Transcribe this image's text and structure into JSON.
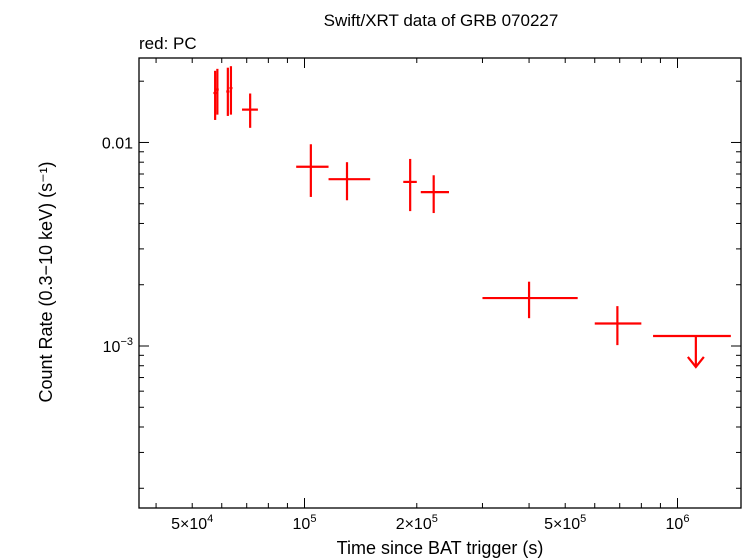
{
  "chart_data": {
    "type": "scatter",
    "title": "Swift/XRT data of GRB 070227",
    "annotation": "red: PC",
    "xlabel": "Time since BAT trigger (s)",
    "ylabel": "Count Rate (0.3−10 keV) (s⁻¹)",
    "xscale": "log",
    "yscale": "log",
    "xlim": [
      36000,
      1480000
    ],
    "ylim": [
      0.00016,
      0.026
    ],
    "x_ticks": [
      {
        "value": 50000,
        "mant": "5×10",
        "exp": "4"
      },
      {
        "value": 100000,
        "mant": "10",
        "exp": "5"
      },
      {
        "value": 200000,
        "mant": "2×10",
        "exp": "5"
      },
      {
        "value": 500000,
        "mant": "5×10",
        "exp": "5"
      },
      {
        "value": 1000000,
        "mant": "10",
        "exp": "6"
      }
    ],
    "y_ticks": [
      {
        "value": 0.01,
        "mant": "0.01",
        "exp": ""
      },
      {
        "value": 0.001,
        "mant": "10",
        "exp": "−3"
      }
    ],
    "color": "#ff0000",
    "series": [
      {
        "points": [
          {
            "x": 57600,
            "xerr": [
              600,
              600
            ],
            "y": 0.0175,
            "yerr": [
              0.0046,
              0.005
            ]
          },
          {
            "x": 58400,
            "xerr": [
              500,
              500
            ],
            "y": 0.0182,
            "yerr": [
              0.0045,
              0.0048
            ]
          },
          {
            "x": 62300,
            "xerr": [
              600,
              600
            ],
            "y": 0.0178,
            "yerr": [
              0.0043,
              0.0055
            ]
          },
          {
            "x": 63500,
            "xerr": [
              600,
              600
            ],
            "y": 0.0185,
            "yerr": [
              0.0048,
              0.0052
            ]
          },
          {
            "x": 71500,
            "xerr": [
              3500,
              3500
            ],
            "y": 0.0145,
            "yerr": [
              0.0027,
              0.0029
            ]
          },
          {
            "x": 104000,
            "xerr": [
              9000,
              12000
            ],
            "y": 0.0076,
            "yerr": [
              0.0022,
              0.0022
            ]
          },
          {
            "x": 130000,
            "xerr": [
              14000,
              20000
            ],
            "y": 0.0066,
            "yerr": [
              0.0014,
              0.0014
            ]
          },
          {
            "x": 192000,
            "xerr": [
              8000,
              8000
            ],
            "y": 0.0064,
            "yerr": [
              0.0018,
              0.0019
            ]
          },
          {
            "x": 222000,
            "xerr": [
              17000,
              22000
            ],
            "y": 0.0057,
            "yerr": [
              0.0012,
              0.0012
            ]
          },
          {
            "x": 400000,
            "xerr": [
              100000,
              140000
            ],
            "y": 0.00172,
            "yerr": [
              0.00035,
              0.00035
            ]
          },
          {
            "x": 690000,
            "xerr": [
              90000,
              110000
            ],
            "y": 0.00129,
            "yerr": [
              0.00028,
              0.00028
            ]
          }
        ]
      }
    ],
    "upper_limits": [
      {
        "x": 1120000,
        "xerr": [
          260000,
          270000
        ],
        "y": 0.00112
      }
    ]
  }
}
